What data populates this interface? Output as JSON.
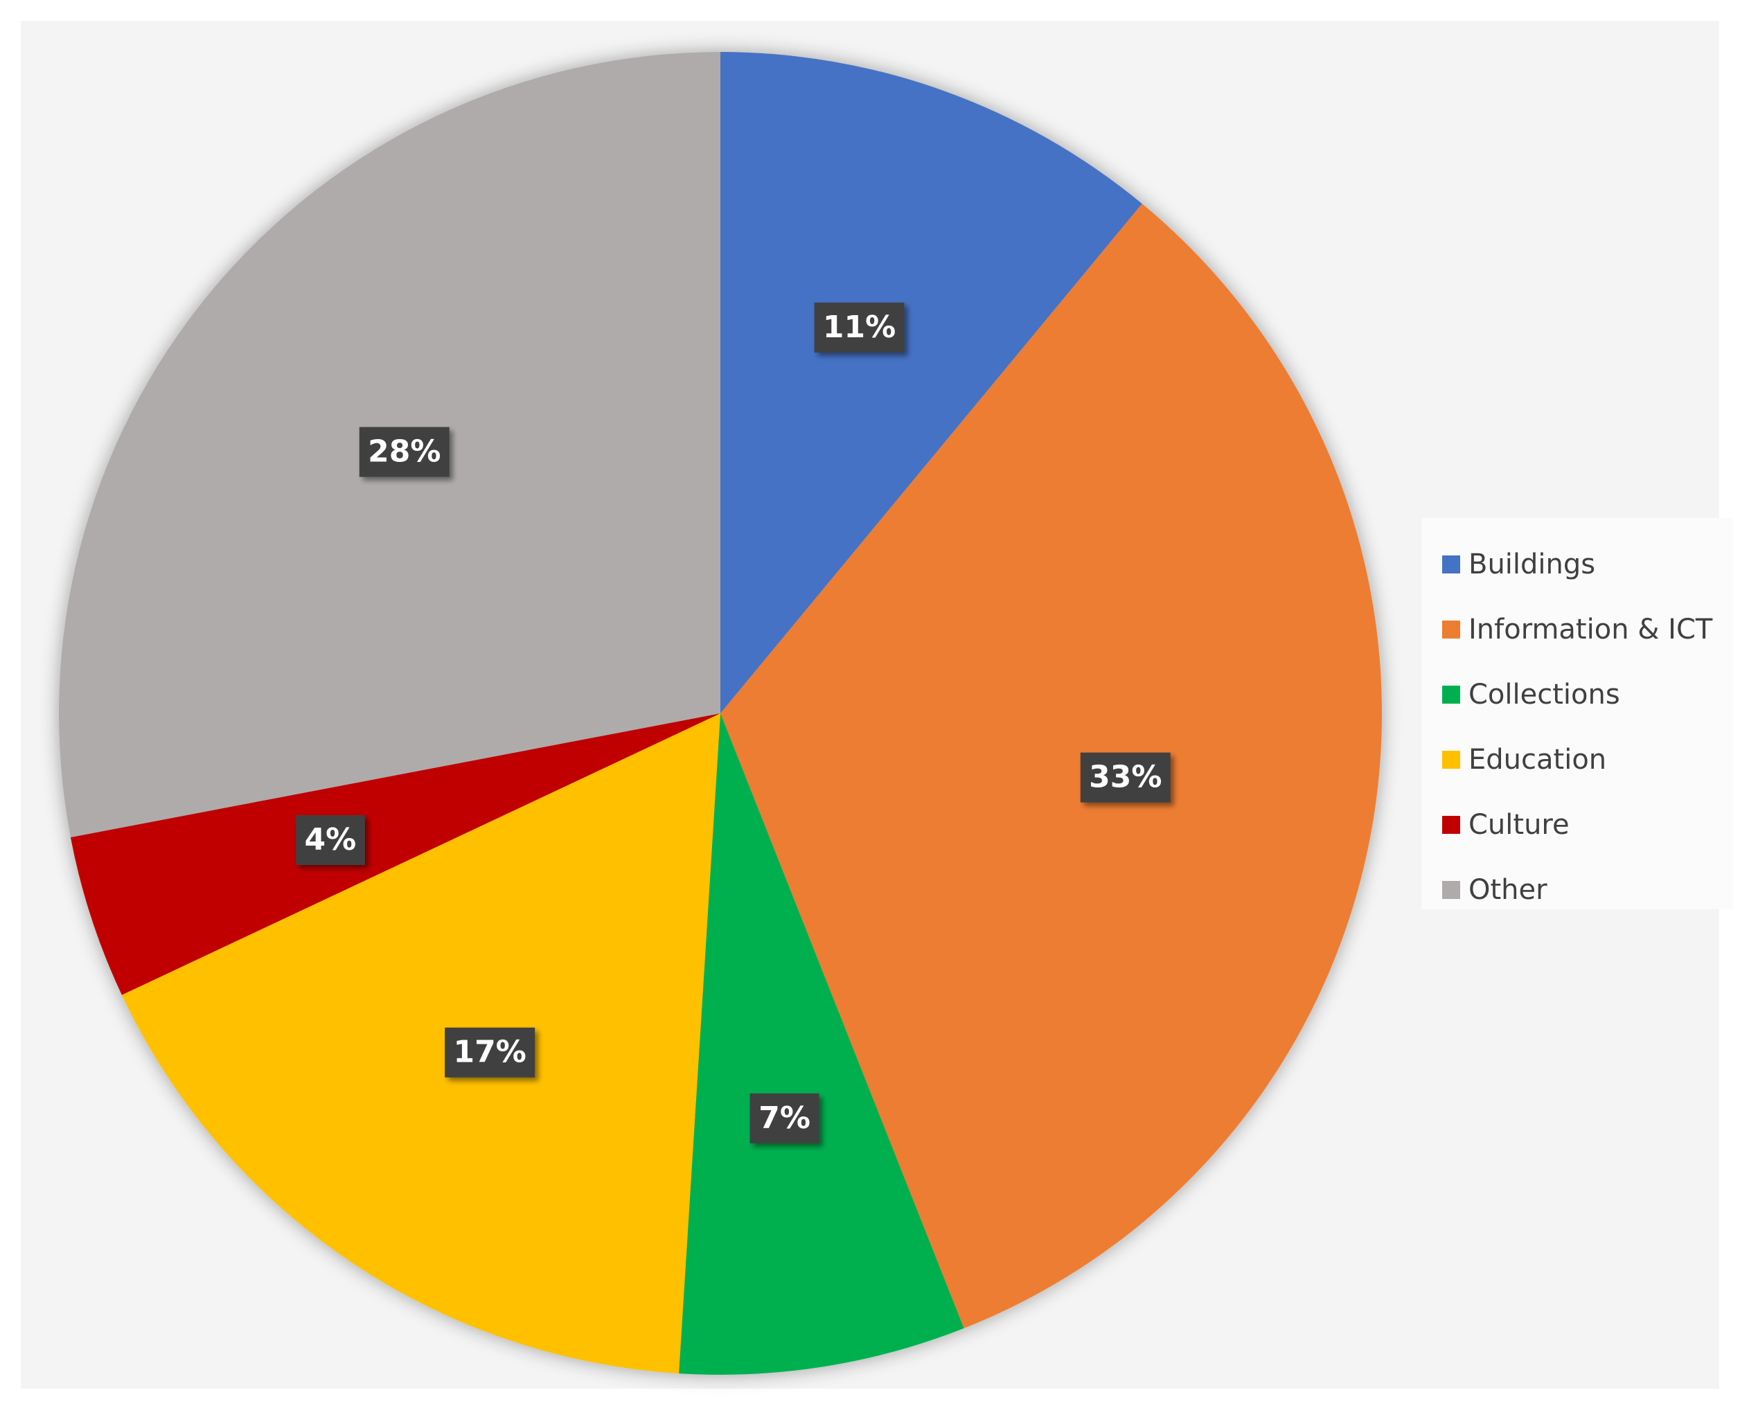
{
  "chart_data": {
    "type": "pie",
    "categories": [
      "Buildings",
      "Information & ICT",
      "Collections",
      "Education",
      "Culture",
      "Other"
    ],
    "values": [
      11,
      33,
      7,
      17,
      4,
      28
    ],
    "value_labels": [
      "11%",
      "33%",
      "7%",
      "17%",
      "4%",
      "28%"
    ],
    "colors": [
      "#4472c4",
      "#ed7d31",
      "#00b050",
      "#ffc000",
      "#c00000",
      "#afabab"
    ],
    "legend_position": "right",
    "start_angle": "12 o'clock",
    "direction": "clockwise"
  }
}
